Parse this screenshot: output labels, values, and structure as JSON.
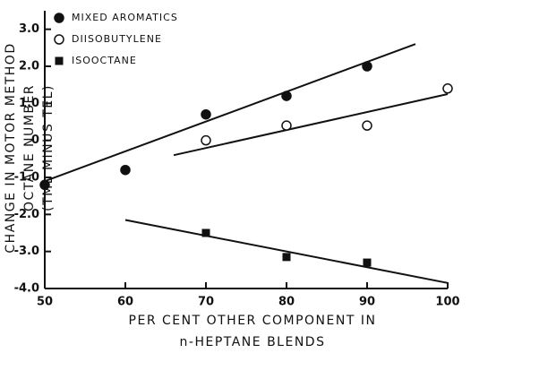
{
  "chart_data": {
    "type": "scatter",
    "x_label": [
      "PER CENT OTHER COMPONENT IN",
      "n-HEPTANE BLENDS"
    ],
    "y_label": [
      "CHANGE IN MOTOR METHOD",
      "OCTANE NUMBER",
      "(TML MINUS TEL)"
    ],
    "xlim": [
      50,
      100
    ],
    "xticks": [
      50,
      60,
      70,
      80,
      90,
      100
    ],
    "ylim": [
      -4,
      3.5
    ],
    "yticks": [
      {
        "value": 3,
        "label": "3.0"
      },
      {
        "value": 2,
        "label": "2.0"
      },
      {
        "value": 1,
        "label": "1.0"
      },
      0,
      {
        "value": -1,
        "label": "-1.0"
      },
      {
        "value": -2,
        "label": "-2.0"
      },
      {
        "value": -3,
        "label": "-3.0"
      },
      {
        "value": -4,
        "label": "-4.0"
      }
    ],
    "series": [
      {
        "name": "MIXED AROMATICS",
        "marker": "filled-circle",
        "color": "#111111",
        "x": [
          50,
          60,
          70,
          80,
          90
        ],
        "values": [
          -1.2,
          -0.8,
          0.7,
          1.2,
          2.0
        ]
      },
      {
        "name": "DIISOBUTYLENE",
        "marker": "open-circle",
        "color": "#111111",
        "x": [
          70,
          80,
          90,
          100
        ],
        "values": [
          0,
          0.4,
          0.4,
          1.4
        ]
      },
      {
        "name": "ISOOCTANE",
        "marker": "square",
        "color": "#111111",
        "x": [
          70,
          80,
          90
        ],
        "values": [
          -2.5,
          -3.15,
          -3.3
        ]
      }
    ],
    "lines": [
      {
        "x": [
          50,
          96
        ],
        "y": [
          -1.1,
          2.6
        ]
      },
      {
        "x": [
          66,
          100
        ],
        "y": [
          -0.4,
          1.25
        ]
      },
      {
        "x": [
          60,
          100
        ],
        "y": [
          -2.15,
          -3.85
        ]
      }
    ]
  }
}
